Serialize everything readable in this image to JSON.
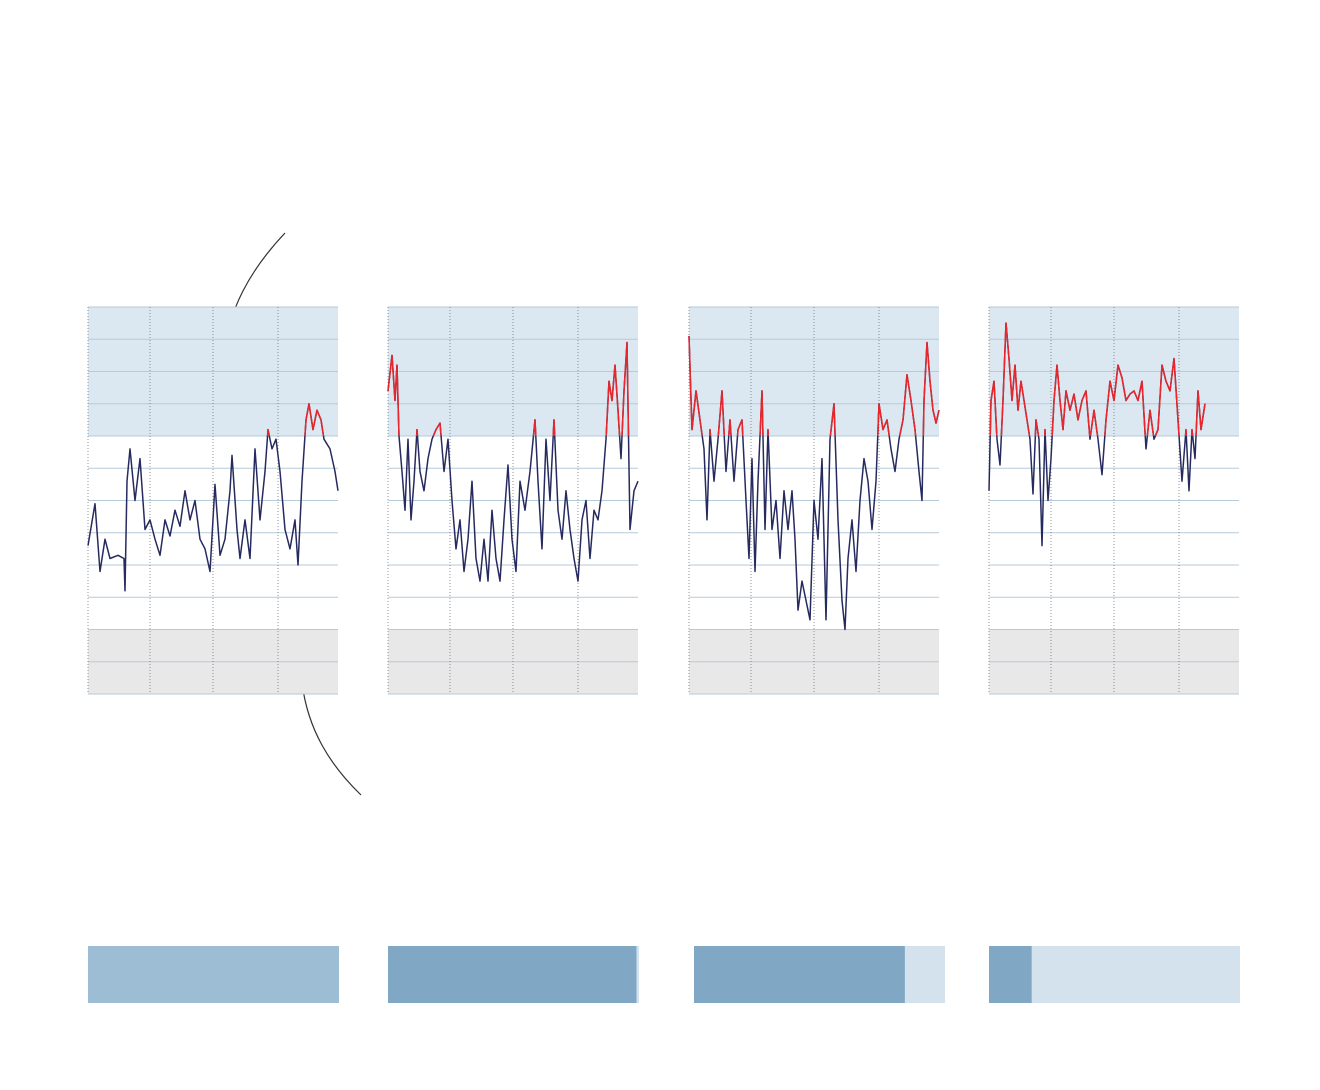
{
  "chart_data": [
    {
      "type": "line",
      "color": "#262a5e",
      "highlight_above": 8,
      "highlight_color": "#e8262b",
      "bands": [
        {
          "from": 8,
          "to": 12,
          "color": "#dce8f1"
        },
        {
          "from": 0,
          "to": 2,
          "color": "#e8e8e8"
        }
      ],
      "xlim": [
        0,
        250
      ],
      "xticks": [
        0,
        62,
        125,
        190
      ],
      "ylim": [
        0,
        12
      ],
      "yticks": [
        0,
        1,
        2,
        3,
        4,
        5,
        6,
        7,
        8,
        9,
        10,
        11,
        12
      ],
      "grid": true,
      "x": [
        0,
        7,
        12,
        17,
        22,
        30,
        36,
        37,
        39,
        42,
        47,
        52,
        57,
        62,
        67,
        72,
        77,
        82,
        87,
        92,
        97,
        102,
        107,
        112,
        117,
        122,
        127,
        132,
        137,
        142,
        144,
        149,
        152,
        157,
        162,
        167,
        172,
        177,
        180,
        184,
        188,
        192,
        197,
        202,
        207,
        210,
        214,
        218,
        221,
        225,
        229,
        233,
        236,
        242,
        247,
        250
      ],
      "values": [
        4.6,
        5.9,
        3.8,
        4.8,
        4.2,
        4.3,
        4.2,
        3.2,
        6.6,
        7.6,
        6.0,
        7.3,
        5.1,
        5.4,
        4.8,
        4.3,
        5.4,
        4.9,
        5.7,
        5.2,
        6.3,
        5.4,
        6.0,
        4.8,
        4.5,
        3.8,
        6.5,
        4.3,
        4.8,
        6.3,
        7.4,
        5.1,
        4.2,
        5.4,
        4.2,
        7.6,
        5.4,
        6.9,
        8.2,
        7.6,
        7.9,
        6.9,
        5.1,
        4.5,
        5.4,
        4.0,
        6.6,
        8.5,
        9.0,
        8.2,
        8.8,
        8.5,
        7.9,
        7.6,
        6.9,
        6.3
      ]
    },
    {
      "type": "line",
      "color": "#262a5e",
      "highlight_above": 8,
      "highlight_color": "#e8262b",
      "bands": [
        {
          "from": 8,
          "to": 12,
          "color": "#dce8f1"
        },
        {
          "from": 0,
          "to": 2,
          "color": "#e8e8e8"
        }
      ],
      "xlim": [
        0,
        250
      ],
      "xticks": [
        0,
        62,
        125,
        190
      ],
      "ylim": [
        0,
        12
      ],
      "yticks": [
        0,
        1,
        2,
        3,
        4,
        5,
        6,
        7,
        8,
        9,
        10,
        11,
        12
      ],
      "grid": true,
      "x": [
        0,
        4,
        7,
        9,
        11,
        14,
        17,
        20,
        23,
        26,
        29,
        32,
        36,
        40,
        44,
        48,
        52,
        56,
        60,
        64,
        68,
        72,
        76,
        80,
        84,
        88,
        92,
        96,
        100,
        104,
        108,
        112,
        116,
        120,
        124,
        128,
        132,
        137,
        142,
        147,
        150,
        154,
        158,
        162,
        166,
        170,
        174,
        178,
        182,
        186,
        190,
        194,
        198,
        202,
        206,
        210,
        214,
        218,
        221,
        224,
        227,
        230,
        233,
        236,
        239,
        242,
        246,
        250
      ],
      "values": [
        9.4,
        10.5,
        9.1,
        10.2,
        8.0,
        6.9,
        5.7,
        7.9,
        5.4,
        6.6,
        8.2,
        6.9,
        6.3,
        7.3,
        7.9,
        8.2,
        8.4,
        6.9,
        7.9,
        6.0,
        4.5,
        5.4,
        3.8,
        4.8,
        6.6,
        4.2,
        3.5,
        4.8,
        3.5,
        5.7,
        4.2,
        3.5,
        5.4,
        7.1,
        4.8,
        3.8,
        6.6,
        5.7,
        6.9,
        8.5,
        6.6,
        4.5,
        7.9,
        6.0,
        8.5,
        5.7,
        4.8,
        6.3,
        5.1,
        4.2,
        3.5,
        5.4,
        6.0,
        4.2,
        5.7,
        5.4,
        6.3,
        7.9,
        9.7,
        9.1,
        10.2,
        8.8,
        7.3,
        9.4,
        10.9,
        5.1,
        6.3,
        6.6
      ]
    },
    {
      "type": "line",
      "color": "#262a5e",
      "highlight_above": 8,
      "highlight_color": "#e8262b",
      "bands": [
        {
          "from": 8,
          "to": 12,
          "color": "#dce8f1"
        },
        {
          "from": 0,
          "to": 2,
          "color": "#e8e8e8"
        }
      ],
      "xlim": [
        0,
        250
      ],
      "xticks": [
        0,
        62,
        125,
        190
      ],
      "ylim": [
        0,
        12
      ],
      "yticks": [
        0,
        1,
        2,
        3,
        4,
        5,
        6,
        7,
        8,
        9,
        10,
        11,
        12
      ],
      "grid": true,
      "x": [
        0,
        3,
        7,
        11,
        15,
        18,
        21,
        25,
        29,
        33,
        37,
        41,
        45,
        49,
        53,
        57,
        60,
        63,
        66,
        69,
        73,
        76,
        79,
        83,
        87,
        91,
        95,
        99,
        103,
        106,
        109,
        113,
        117,
        121,
        125,
        129,
        133,
        137,
        141,
        145,
        149,
        153,
        156,
        159,
        163,
        167,
        171,
        175,
        179,
        183,
        187,
        190,
        194,
        198,
        202,
        206,
        210,
        214,
        218,
        222,
        226,
        230,
        233,
        235,
        238,
        241,
        244,
        247,
        250
      ],
      "values": [
        11.1,
        8.2,
        9.4,
        8.5,
        7.6,
        5.4,
        8.2,
        6.6,
        7.9,
        9.4,
        6.9,
        8.5,
        6.6,
        8.2,
        8.5,
        6.0,
        4.2,
        7.3,
        3.8,
        6.6,
        9.4,
        5.1,
        8.2,
        5.1,
        6.0,
        4.2,
        6.3,
        5.1,
        6.3,
        4.8,
        2.6,
        3.5,
        2.9,
        2.3,
        6.0,
        4.8,
        7.3,
        2.3,
        7.9,
        9.0,
        5.4,
        2.9,
        2.0,
        4.2,
        5.4,
        3.8,
        6.0,
        7.3,
        6.6,
        5.1,
        6.6,
        9.0,
        8.2,
        8.5,
        7.6,
        6.9,
        7.9,
        8.5,
        9.9,
        9.1,
        8.2,
        6.9,
        6.0,
        9.1,
        10.9,
        9.7,
        8.8,
        8.4,
        8.8
      ]
    },
    {
      "type": "line",
      "color": "#262a5e",
      "highlight_above": 8,
      "highlight_color": "#e8262b",
      "bands": [
        {
          "from": 8,
          "to": 12,
          "color": "#dce8f1"
        },
        {
          "from": 0,
          "to": 2,
          "color": "#e8e8e8"
        }
      ],
      "xlim": [
        0,
        250
      ],
      "xticks": [
        0,
        62,
        125,
        190
      ],
      "ylim": [
        0,
        12
      ],
      "yticks": [
        0,
        1,
        2,
        3,
        4,
        5,
        6,
        7,
        8,
        9,
        10,
        11,
        12
      ],
      "grid": true,
      "x": [
        0,
        2,
        5,
        8,
        11,
        14,
        17,
        20,
        23,
        26,
        29,
        32,
        35,
        38,
        41,
        44,
        47,
        50,
        53,
        56,
        59,
        62,
        65,
        68,
        71,
        74,
        77,
        81,
        85,
        89,
        93,
        97,
        101,
        105,
        109,
        113,
        117,
        121,
        125,
        129,
        133,
        137,
        141,
        145,
        149,
        153,
        157,
        161,
        165,
        169,
        173,
        177,
        181,
        185,
        189,
        193,
        197,
        200,
        203,
        206,
        209,
        212,
        216
      ],
      "values": [
        6.3,
        9.1,
        9.7,
        7.9,
        7.1,
        9.1,
        11.5,
        10.4,
        9.1,
        10.2,
        8.8,
        9.7,
        9.1,
        8.5,
        7.9,
        6.2,
        8.5,
        7.9,
        4.6,
        8.2,
        6.0,
        7.3,
        9.1,
        10.2,
        9.1,
        8.2,
        9.4,
        8.8,
        9.3,
        8.5,
        9.1,
        9.4,
        7.9,
        8.8,
        7.9,
        6.8,
        8.5,
        9.7,
        9.1,
        10.2,
        9.8,
        9.1,
        9.3,
        9.4,
        9.1,
        9.7,
        7.6,
        8.8,
        7.9,
        8.2,
        10.2,
        9.7,
        9.4,
        10.4,
        8.5,
        6.6,
        8.2,
        6.3,
        8.2,
        7.3,
        9.4,
        8.2,
        9.0
      ]
    },
    {
      "type": "progress",
      "xlim": [
        0,
        1
      ],
      "values": [
        1,
        0.99,
        0.84,
        0.17
      ],
      "colors": [
        "#9dbdd4",
        "#80a8c4",
        "#80a8c4",
        "#80a8c4"
      ],
      "track_color": "#d3e2ec"
    }
  ]
}
